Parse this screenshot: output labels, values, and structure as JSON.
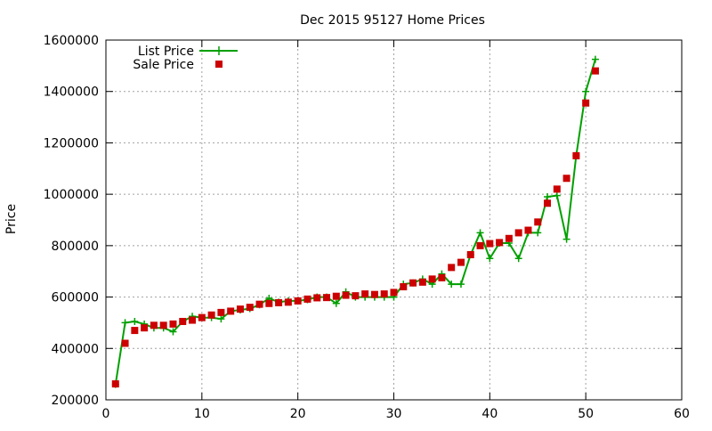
{
  "chart_data": {
    "type": "line",
    "title": "Dec 2015 95127 Home Prices",
    "xlabel": "",
    "ylabel": "Price",
    "xlim": [
      0,
      60
    ],
    "ylim": [
      200000,
      1600000
    ],
    "x_ticks": [
      0,
      10,
      20,
      30,
      40,
      50,
      60
    ],
    "y_ticks": [
      200000,
      400000,
      600000,
      800000,
      1000000,
      1200000,
      1400000,
      1600000
    ],
    "grid": true,
    "legend_position": "top-left",
    "series": [
      {
        "name": "List Price",
        "style": "line-plus",
        "color": "#00a000",
        "x": [
          1,
          2,
          3,
          4,
          5,
          6,
          7,
          8,
          9,
          10,
          11,
          12,
          13,
          14,
          15,
          16,
          17,
          18,
          19,
          20,
          21,
          22,
          23,
          24,
          25,
          26,
          27,
          28,
          29,
          30,
          31,
          32,
          33,
          34,
          35,
          36,
          37,
          38,
          39,
          40,
          41,
          42,
          43,
          44,
          45,
          46,
          47,
          48,
          49,
          50,
          51
        ],
        "values": [
          260000,
          500000,
          505000,
          495000,
          480000,
          480000,
          465000,
          505000,
          525000,
          520000,
          520000,
          515000,
          545000,
          550000,
          555000,
          570000,
          595000,
          580000,
          585000,
          585000,
          590000,
          600000,
          600000,
          575000,
          620000,
          600000,
          600000,
          600000,
          600000,
          600000,
          650000,
          655000,
          670000,
          650000,
          690000,
          650000,
          650000,
          765000,
          850000,
          750000,
          810000,
          810000,
          750000,
          850000,
          850000,
          990000,
          995000,
          825000,
          1150000,
          1400000,
          1525000
        ]
      },
      {
        "name": "Sale Price",
        "style": "square",
        "color": "#cc0000",
        "x": [
          1,
          2,
          3,
          4,
          5,
          6,
          7,
          8,
          9,
          10,
          11,
          12,
          13,
          14,
          15,
          16,
          17,
          18,
          19,
          20,
          21,
          22,
          23,
          24,
          25,
          26,
          27,
          28,
          29,
          30,
          31,
          32,
          33,
          34,
          35,
          36,
          37,
          38,
          39,
          40,
          41,
          42,
          43,
          44,
          45,
          46,
          47,
          48,
          49,
          50,
          51
        ],
        "values": [
          262000,
          420000,
          470000,
          480000,
          490000,
          490000,
          495000,
          505000,
          510000,
          520000,
          530000,
          540000,
          545000,
          553000,
          560000,
          572000,
          575000,
          578000,
          580000,
          585000,
          592000,
          597000,
          598000,
          603000,
          607000,
          605000,
          612000,
          610000,
          612000,
          618000,
          640000,
          655000,
          658000,
          670000,
          675000,
          715000,
          735000,
          765000,
          800000,
          808000,
          812000,
          828000,
          850000,
          860000,
          892000,
          965000,
          1020000,
          1062000,
          1150000,
          1355000,
          1480000
        ]
      }
    ]
  }
}
